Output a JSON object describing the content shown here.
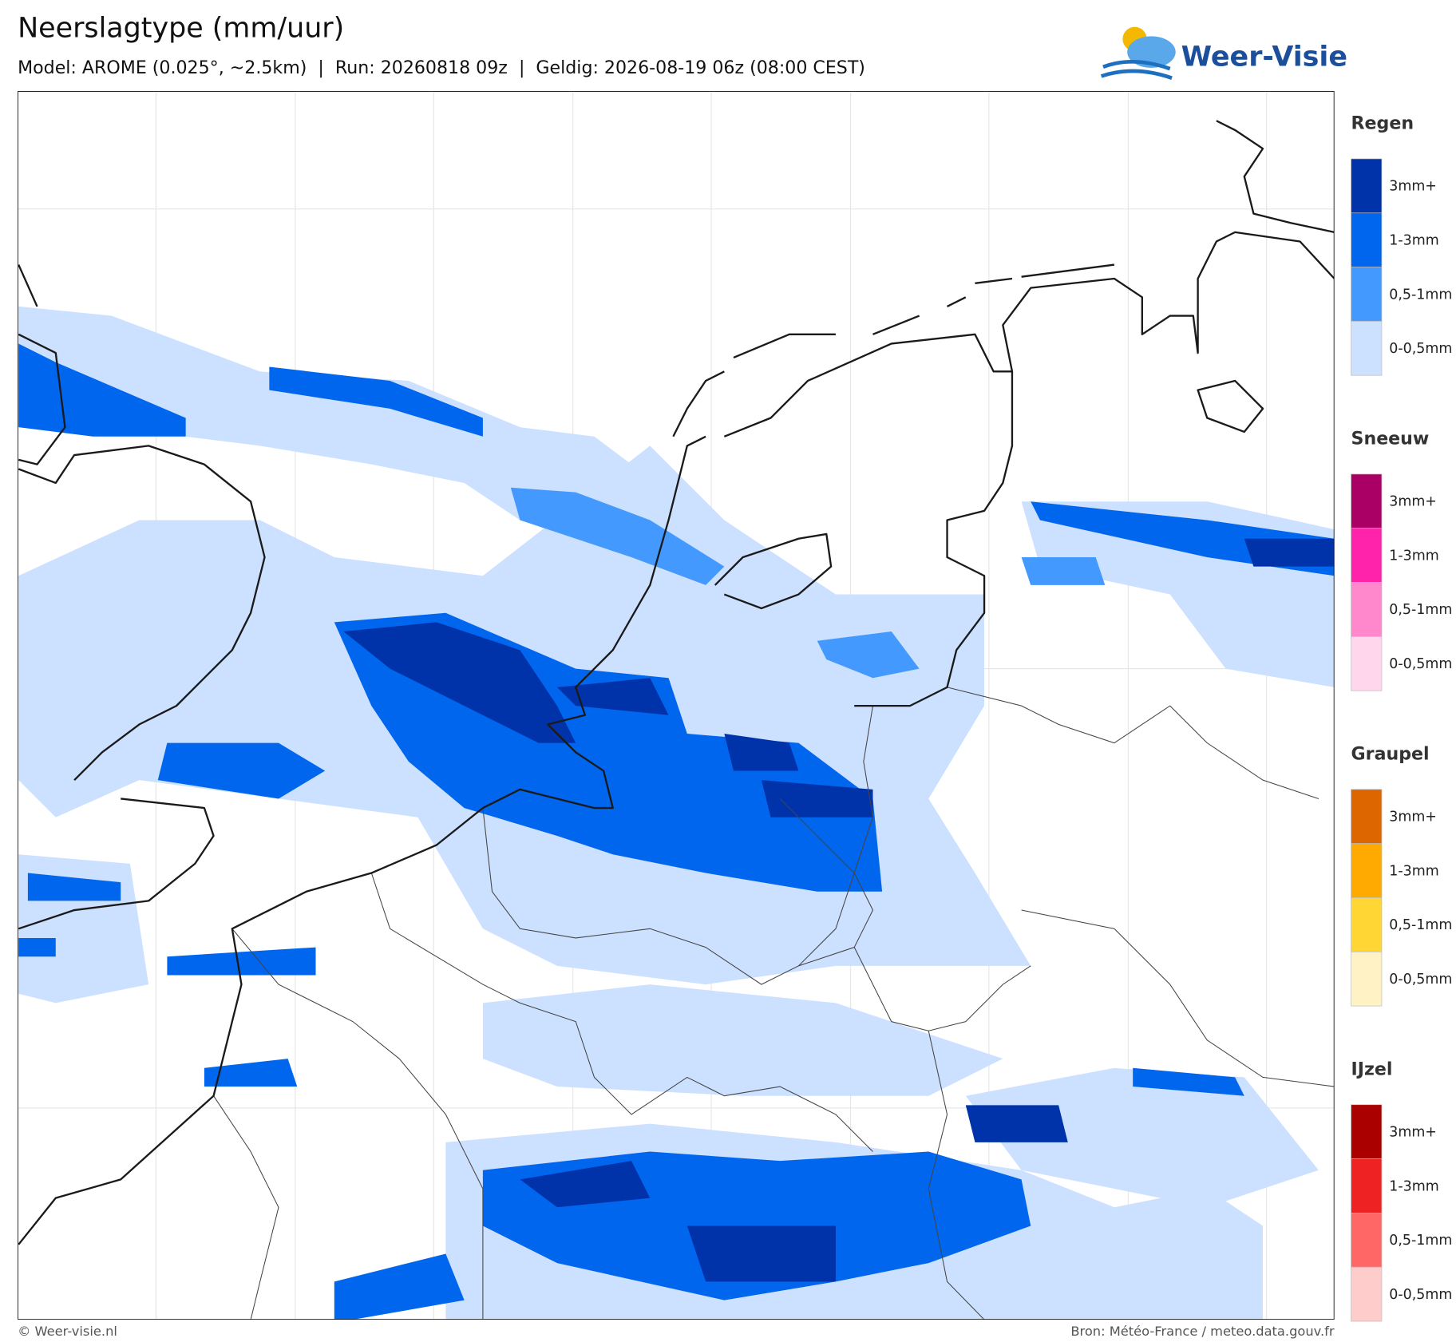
{
  "header": {
    "title": "Neerslagtype (mm/uur)",
    "subtitle": "Model: AROME (0.025°, ~2.5km)  |  Run: 20260818 09z  |  Geldig: 2026-08-19 06z (08:00 CEST)"
  },
  "logo": {
    "text": "Weer-Visie"
  },
  "legend": [
    {
      "title": "Regen",
      "items": [
        {
          "label": "3mm+",
          "color": "#0033aa"
        },
        {
          "label": "1-3mm",
          "color": "#0066ee"
        },
        {
          "label": "0,5-1mm",
          "color": "#4499ff"
        },
        {
          "label": "0-0,5mm",
          "color": "#cce0ff"
        }
      ]
    },
    {
      "title": "Sneeuw",
      "items": [
        {
          "label": "3mm+",
          "color": "#aa0066"
        },
        {
          "label": "1-3mm",
          "color": "#ff22aa"
        },
        {
          "label": "0,5-1mm",
          "color": "#ff88cc"
        },
        {
          "label": "0-0,5mm",
          "color": "#ffd6ec"
        }
      ]
    },
    {
      "title": "Graupel",
      "items": [
        {
          "label": "3mm+",
          "color": "#dd6600"
        },
        {
          "label": "1-3mm",
          "color": "#ffaa00"
        },
        {
          "label": "0,5-1mm",
          "color": "#ffd633"
        },
        {
          "label": "0-0,5mm",
          "color": "#fff2c4"
        }
      ]
    },
    {
      "title": "IJzel",
      "items": [
        {
          "label": "3mm+",
          "color": "#aa0000"
        },
        {
          "label": "1-3mm",
          "color": "#ee2222"
        },
        {
          "label": "0,5-1mm",
          "color": "#ff6666"
        },
        {
          "label": "0-0,5mm",
          "color": "#ffcccc"
        }
      ]
    }
  ],
  "footer": {
    "left": "© Weer-visie.nl",
    "right": "Bron: Météo-France / meteo.data.gouv.fr"
  }
}
